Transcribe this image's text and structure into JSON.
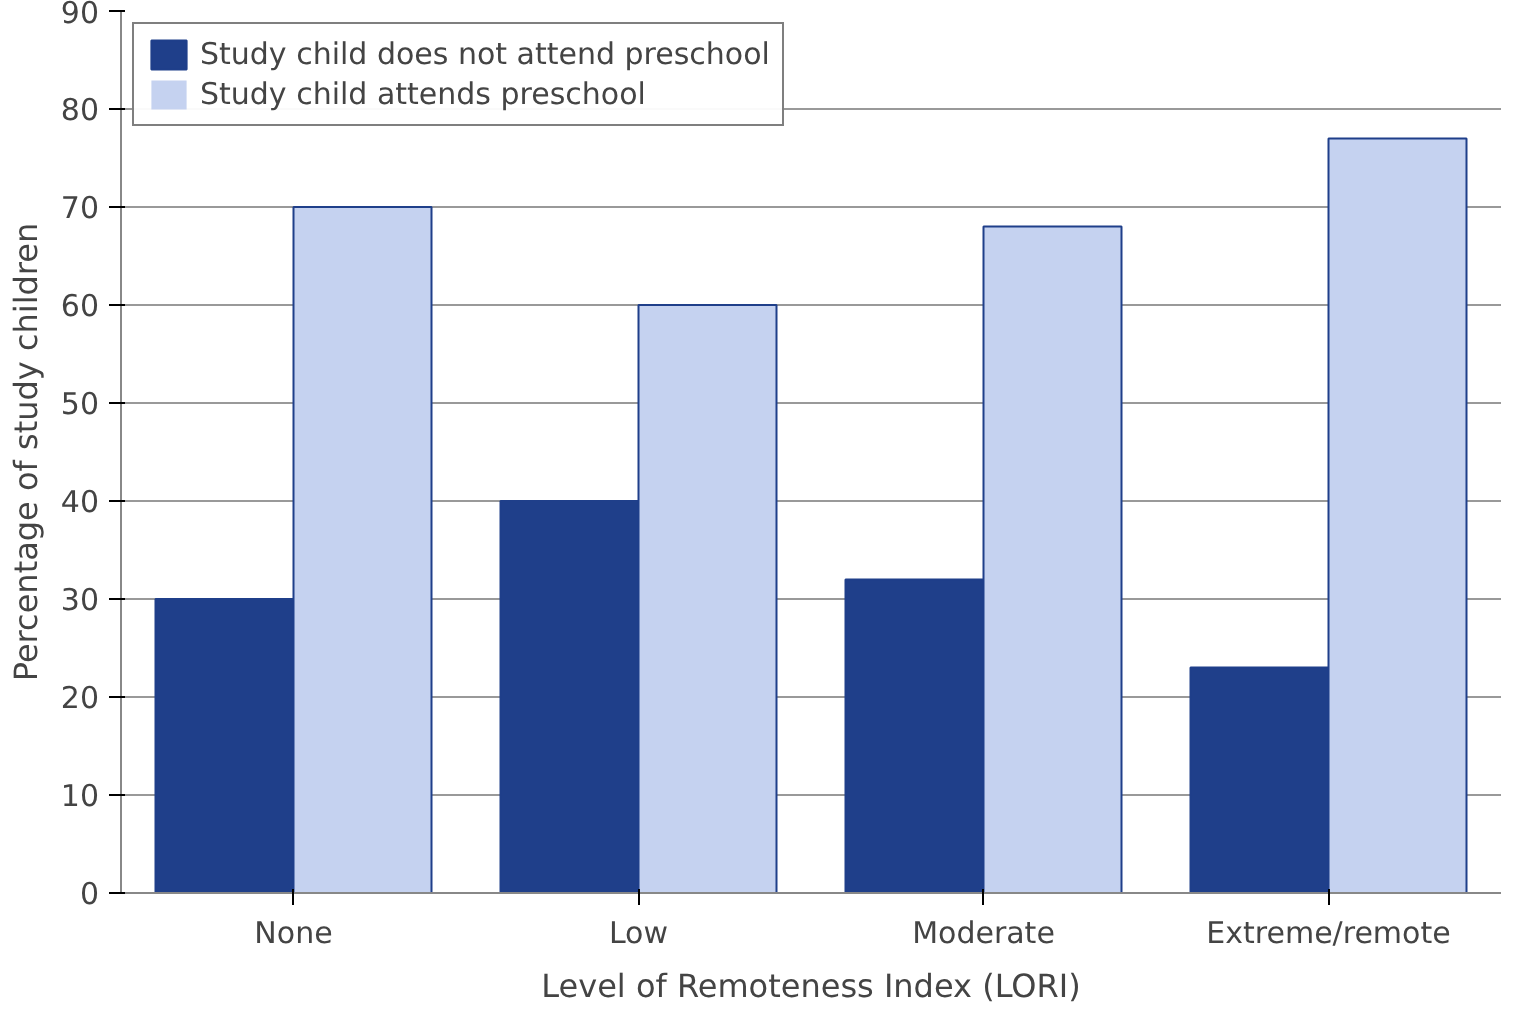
{
  "chart_data": {
    "type": "bar",
    "xlabel": "Level of Remoteness Index (LORI)",
    "ylabel": "Percentage of study children",
    "categories": [
      "None",
      "Low",
      "Moderate",
      "Extreme/remote"
    ],
    "series": [
      {
        "name": "Study child does not attend preschool",
        "color": "#1f3f8a",
        "values": [
          30,
          40,
          32,
          23
        ]
      },
      {
        "name": "Study child attends preschool",
        "color": "#c5d2f0",
        "values": [
          70,
          60,
          68,
          77
        ]
      }
    ],
    "ylim": [
      0,
      90
    ],
    "yticks": [
      0,
      10,
      20,
      30,
      40,
      50,
      60,
      70,
      80,
      90
    ],
    "grid": "y",
    "legend": "top left"
  }
}
